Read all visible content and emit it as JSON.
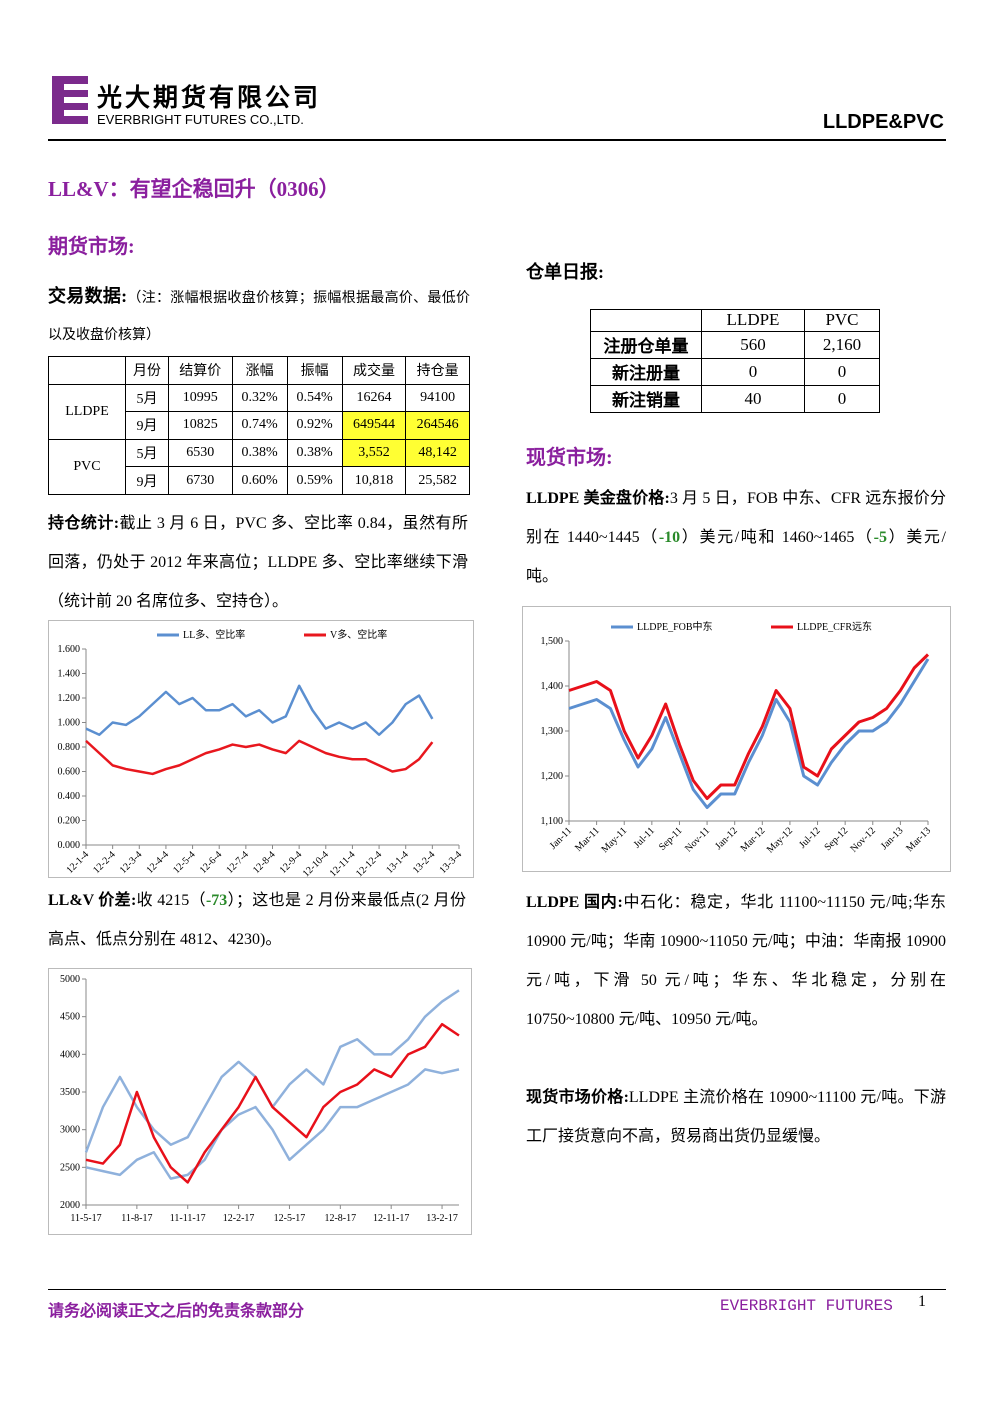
{
  "header": {
    "company_cn": "光大期货有限公司",
    "company_en": "EVERBRIGHT FUTURES CO.,LTD.",
    "product": "LLDPE&PVC"
  },
  "title": "LL&V：有望企稳回升（0306）",
  "futures_heading": "期货市场:",
  "trading": {
    "label": "交易数据:",
    "note": "（注：涨幅根据收盘价核算；振幅根据最高价、最低价以及收盘价核算）",
    "header": [
      "月份",
      "结算价",
      "涨幅",
      "振幅",
      "成交量",
      "持仓量"
    ],
    "groups": [
      {
        "name": "LLDPE",
        "rows": [
          [
            "5月",
            "10995",
            "0.32%",
            "0.54%",
            "16264",
            "94100"
          ],
          [
            "9月",
            "10825",
            "0.74%",
            "0.92%",
            "649544",
            "264546"
          ]
        ]
      },
      {
        "name": "PVC",
        "rows": [
          [
            "5月",
            "6530",
            "0.38%",
            "0.38%",
            "3,552",
            "48,142"
          ],
          [
            "9月",
            "6730",
            "0.60%",
            "0.59%",
            "10,818",
            "25,582"
          ]
        ]
      }
    ]
  },
  "holdings": {
    "label": "持仓统计:",
    "text": "截止 3 月 6 日，PVC 多、空比率 0.84，虽然有所回落，仍处于 2012 年来高位；LLDPE 多、空比率继续下滑（统计前 20 名席位多、空持仓）。"
  },
  "spread": {
    "label": "LL&V 价差:",
    "parts": [
      "收 4215（",
      "-73",
      "）；这也是 2 月份来最低点(2 月份高点、低点分别在 4812、4230)。"
    ]
  },
  "warehouse": {
    "heading": "仓单日报:",
    "columns": [
      "LLDPE",
      "PVC"
    ],
    "rows": [
      {
        "label": "注册仓单量",
        "cells": [
          "560",
          "2,160"
        ]
      },
      {
        "label": "新注册量",
        "cells": [
          "0",
          "0"
        ]
      },
      {
        "label": "新注销量",
        "cells": [
          "40",
          "0"
        ]
      }
    ]
  },
  "spot_heading": "现货市场:",
  "usd_price": {
    "label": "LLDPE 美金盘价格:",
    "parts": [
      "3 月 5 日，FOB 中东、CFR 远东报价分别在 1440~1445（",
      "-10",
      "）美元/吨和 1460~1465（",
      "-5",
      "）美元/吨。"
    ]
  },
  "domestic": {
    "label": "LLDPE 国内:",
    "text": "中石化：稳定，华北 11100~11150 元/吨;华东 10900 元/吨；华南 10900~11050 元/吨；中油：华南报 10900 元/吨，下滑 50 元/吨；华东、华北稳定，分别在 10750~10800 元/吨、10950 元/吨。"
  },
  "spot_price": {
    "label": "现货市场价格:",
    "text": "LLDPE 主流价格在 10900~11100 元/吨。下游工厂接货意向不高，贸易商出货仍显缓慢。"
  },
  "charts": [
    {
      "type": "line",
      "grid": false,
      "categories": [
        "12-1-4",
        null,
        "12-2-4",
        null,
        "12-3-4",
        null,
        "12-4-4",
        null,
        "12-5-4",
        null,
        "12-6-4",
        null,
        "12-7-4",
        null,
        "12-8-4",
        null,
        "12-9-4",
        null,
        "12-10-4",
        null,
        "12-11-4",
        null,
        "12-12-4",
        null,
        "13-1-4",
        null,
        "13-2-4",
        null,
        "13-3-4"
      ],
      "ylim": [
        0,
        1.6
      ],
      "yticks": [
        {
          "value": 0,
          "label": "0.000"
        },
        {
          "value": 0.2,
          "label": "0.200"
        },
        {
          "value": 0.4,
          "label": "0.400"
        },
        {
          "value": 0.6,
          "label": "0.600"
        },
        {
          "value": 0.8,
          "label": "0.800"
        },
        {
          "value": 1.0,
          "label": "1.000"
        },
        {
          "value": 1.2,
          "label": "1.200"
        },
        {
          "value": 1.4,
          "label": "1.400"
        },
        {
          "value": 1.6,
          "label": "1.600"
        }
      ],
      "series": [
        {
          "name": "LL多、空比率",
          "color": "#5b8fd0",
          "values": [
            0.95,
            0.9,
            1.0,
            0.98,
            1.05,
            1.15,
            1.25,
            1.15,
            1.2,
            1.1,
            1.1,
            1.15,
            1.05,
            1.1,
            1.0,
            1.05,
            1.3,
            1.1,
            0.95,
            1.0,
            0.95,
            1.0,
            0.9,
            1.0,
            1.15,
            1.22,
            1.03
          ]
        },
        {
          "name": "V多、空比率",
          "color": "#e8171e",
          "values": [
            0.85,
            0.75,
            0.65,
            0.62,
            0.6,
            0.58,
            0.62,
            0.65,
            0.7,
            0.75,
            0.78,
            0.82,
            0.8,
            0.82,
            0.78,
            0.75,
            0.85,
            0.8,
            0.75,
            0.72,
            0.7,
            0.7,
            0.65,
            0.6,
            0.62,
            0.7,
            0.84
          ]
        }
      ]
    },
    {
      "type": "line",
      "grid": false,
      "categories": [
        "Jan-11",
        null,
        "Mar-11",
        null,
        "May-11",
        null,
        "Jul-11",
        null,
        "Sep-11",
        null,
        "Nov-11",
        null,
        "Jan-12",
        null,
        "Mar-12",
        null,
        "May-12",
        null,
        "Jul-12",
        null,
        "Sep-12",
        null,
        "Nov-12",
        null,
        "Jan-13",
        null,
        "Mar-13"
      ],
      "ylim": [
        1100,
        1500
      ],
      "yticks": [
        {
          "value": 1100,
          "label": "1,100"
        },
        {
          "value": 1200,
          "label": "1,200"
        },
        {
          "value": 1300,
          "label": "1,300"
        },
        {
          "value": 1400,
          "label": "1,400"
        },
        {
          "value": 1500,
          "label": "1,500"
        }
      ],
      "series": [
        {
          "name": "LLDPE_FOB中东",
          "color": "#5b8fd0",
          "values": [
            1350,
            1360,
            1370,
            1350,
            1280,
            1220,
            1260,
            1330,
            1250,
            1170,
            1130,
            1160,
            1160,
            1230,
            1290,
            1370,
            1320,
            1200,
            1180,
            1230,
            1270,
            1300,
            1300,
            1320,
            1360,
            1410,
            1460
          ]
        },
        {
          "name": "LLDPE_CFR远东",
          "color": "#e8101a",
          "values": [
            1390,
            1400,
            1410,
            1390,
            1300,
            1240,
            1290,
            1360,
            1270,
            1190,
            1150,
            1180,
            1180,
            1250,
            1310,
            1390,
            1350,
            1220,
            1200,
            1260,
            1290,
            1320,
            1330,
            1350,
            1390,
            1440,
            1470
          ]
        }
      ]
    },
    {
      "type": "line",
      "grid": false,
      "categories": [
        "11-5-17",
        null,
        null,
        "11-8-17",
        null,
        null,
        "11-11-17",
        null,
        null,
        "12-2-17",
        null,
        null,
        "12-5-17",
        null,
        null,
        "12-8-17",
        null,
        null,
        "12-11-17",
        null,
        null,
        "13-2-17",
        null
      ],
      "ylim": [
        2000,
        5000
      ],
      "yticks": [
        2000,
        2500,
        3000,
        3500,
        4000,
        4500,
        5000
      ],
      "series": [
        {
          "color": "#8fb1dc",
          "values": [
            2700,
            3300,
            3700,
            3300,
            3000,
            2800,
            2900,
            3300,
            3700,
            3900,
            3700,
            3300,
            3600,
            3800,
            3600,
            4100,
            4200,
            4000,
            4000,
            4200,
            4500,
            4700,
            4850
          ]
        },
        {
          "color": "#8fb1dc",
          "values": [
            2500,
            2450,
            2400,
            2600,
            2700,
            2350,
            2400,
            2600,
            3000,
            3200,
            3300,
            3000,
            2600,
            2800,
            3000,
            3300,
            3300,
            3400,
            3500,
            3600,
            3800,
            3750,
            3800
          ]
        },
        {
          "color": "#e8101a",
          "values": [
            2600,
            2550,
            2800,
            3500,
            2900,
            2500,
            2300,
            2700,
            3000,
            3300,
            3700,
            3300,
            3100,
            2900,
            3300,
            3500,
            3600,
            3800,
            3700,
            4000,
            4100,
            4400,
            4250
          ]
        }
      ]
    }
  ],
  "footer": {
    "disclaimer": "请务必阅读正文之后的免责条款部分",
    "brand": "EVERBRIGHT FUTURES",
    "page": "1"
  }
}
